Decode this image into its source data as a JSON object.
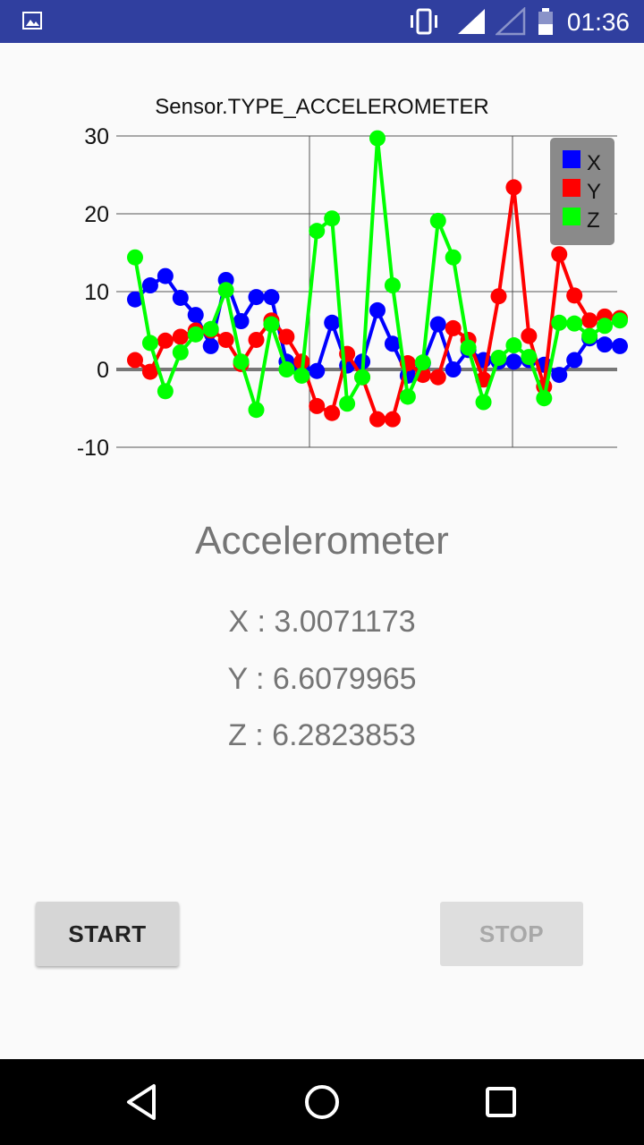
{
  "status": {
    "time": "01:36",
    "icons": [
      "image-icon",
      "vibrate-icon",
      "signal-icon",
      "signal-empty-icon",
      "battery-icon"
    ]
  },
  "app": {
    "heading": "Accelerometer",
    "readings": {
      "x": "X : 3.0071173",
      "y": "Y : 6.6079965",
      "z": "Z : 6.2823853"
    },
    "buttons": {
      "start": "START",
      "stop": "STOP"
    }
  },
  "chart_data": {
    "type": "line",
    "title": "Sensor.TYPE_ACCELEROMETER",
    "ylim": [
      -10,
      30
    ],
    "yticks": [
      30,
      20,
      10,
      0,
      -10
    ],
    "grid": true,
    "legend_position": "top-right",
    "series": [
      {
        "name": "X",
        "color": "#0000ff",
        "values": [
          9.0,
          10.8,
          12.0,
          9.2,
          7.0,
          3.0,
          11.5,
          6.2,
          9.3,
          9.3,
          1.0,
          0.3,
          -0.2,
          6.0,
          0.5,
          1.0,
          7.6,
          3.3,
          -0.8,
          0.8,
          5.8,
          0.0,
          2.5,
          1.2,
          1.0,
          1.0,
          1.2,
          0.6,
          -0.7,
          1.2,
          4.0,
          3.2,
          3.0
        ]
      },
      {
        "name": "Y",
        "color": "#ff0000",
        "values": [
          1.2,
          -0.3,
          3.7,
          4.2,
          5.0,
          5.0,
          3.8,
          0.7,
          3.8,
          6.3,
          4.2,
          1.0,
          -4.7,
          -5.6,
          2.0,
          -1.0,
          -6.4,
          -6.4,
          0.8,
          -0.7,
          -1.0,
          5.3,
          3.8,
          -1.3,
          9.4,
          23.4,
          4.3,
          -2.2,
          14.8,
          9.5,
          6.3,
          6.8,
          6.6
        ]
      },
      {
        "name": "Z",
        "color": "#00ff00",
        "values": [
          14.4,
          3.4,
          -2.8,
          2.2,
          4.5,
          5.2,
          10.2,
          1.0,
          -5.2,
          5.8,
          0.0,
          -0.8,
          17.8,
          19.4,
          -4.4,
          -1.0,
          29.7,
          10.8,
          -3.5,
          0.9,
          19.1,
          14.4,
          2.8,
          -4.2,
          1.5,
          3.1,
          1.6,
          -3.7,
          6.0,
          5.9,
          4.3,
          5.6,
          6.3
        ]
      }
    ]
  }
}
